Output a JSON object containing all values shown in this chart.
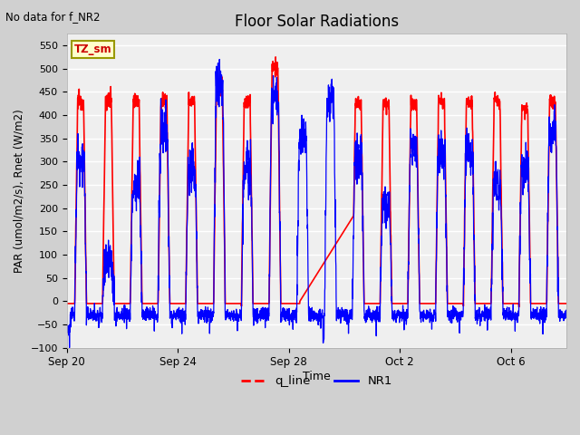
{
  "title": "Floor Solar Radiations",
  "xlabel": "Time",
  "ylabel": "PAR (umol/m2/s), Rnet (W/m2)",
  "top_left_text": "No data for f_NR2",
  "legend_label_box": "TZ_sm",
  "ylim": [
    -100,
    575
  ],
  "yticks": [
    -100,
    -50,
    0,
    50,
    100,
    150,
    200,
    250,
    300,
    350,
    400,
    450,
    500,
    550
  ],
  "xtick_positions": [
    0,
    4,
    8,
    12,
    16
  ],
  "xtick_labels": [
    "Sep 20",
    "Sep 24",
    "Sep 28",
    "Oct 2",
    "Oct 6"
  ],
  "fig_bg_color": "#d0d0d0",
  "plot_bg_color": "#efefef",
  "grid_color": "white",
  "num_days": 18,
  "pts_per_day": 144,
  "red_night_val": -5,
  "blue_night_val": -30,
  "red_peaks": [
    430,
    430,
    430,
    430,
    430,
    465,
    430,
    505,
    0,
    0,
    425,
    425,
    425,
    430,
    430,
    430,
    415,
    430
  ],
  "blue_peaks": [
    310,
    85,
    250,
    370,
    285,
    470,
    285,
    430,
    350,
    430,
    315,
    205,
    320,
    315,
    310,
    250,
    285,
    370
  ],
  "legend_colors": [
    "red",
    "blue"
  ],
  "legend_labels": [
    "q_line",
    "NR1"
  ]
}
